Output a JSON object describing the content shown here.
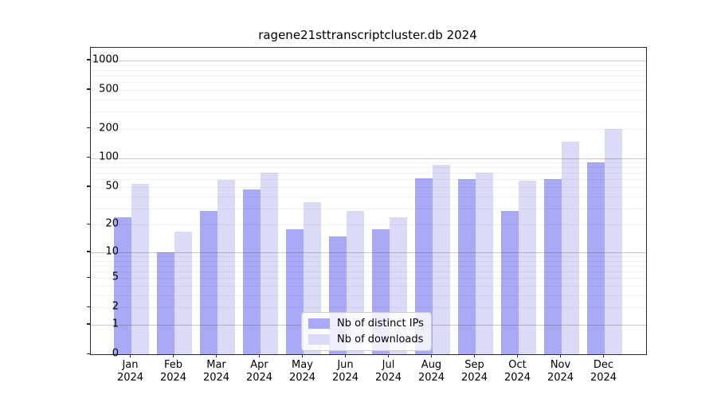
{
  "chart_data": {
    "type": "bar",
    "title": "ragene21sttranscriptcluster.db 2024",
    "categories": [
      "Jan",
      "Feb",
      "Mar",
      "Apr",
      "May",
      "Jun",
      "Jul",
      "Aug",
      "Sep",
      "Oct",
      "Nov",
      "Dec"
    ],
    "category_year": "2024",
    "series": [
      {
        "name": "Nb of distinct IPs",
        "color": "#a9a9f5",
        "values": [
          24,
          10,
          28,
          47,
          18,
          15,
          18,
          62,
          60,
          28,
          60,
          91
        ]
      },
      {
        "name": "Nb of downloads",
        "color": "#dbdbf8",
        "values": [
          54,
          17,
          59,
          70,
          35,
          28,
          24,
          85,
          71,
          58,
          147,
          198
        ]
      }
    ],
    "y_ticks": [
      0,
      1,
      2,
      5,
      10,
      20,
      50,
      100,
      200,
      500,
      1000
    ],
    "y_major_gridlines": [
      1,
      10,
      100,
      1000
    ],
    "y_scale": "log10(1+value)",
    "ylim": [
      0,
      1300
    ],
    "xlabel": "",
    "ylabel": "",
    "grid": true,
    "legend_position": "lower center"
  }
}
